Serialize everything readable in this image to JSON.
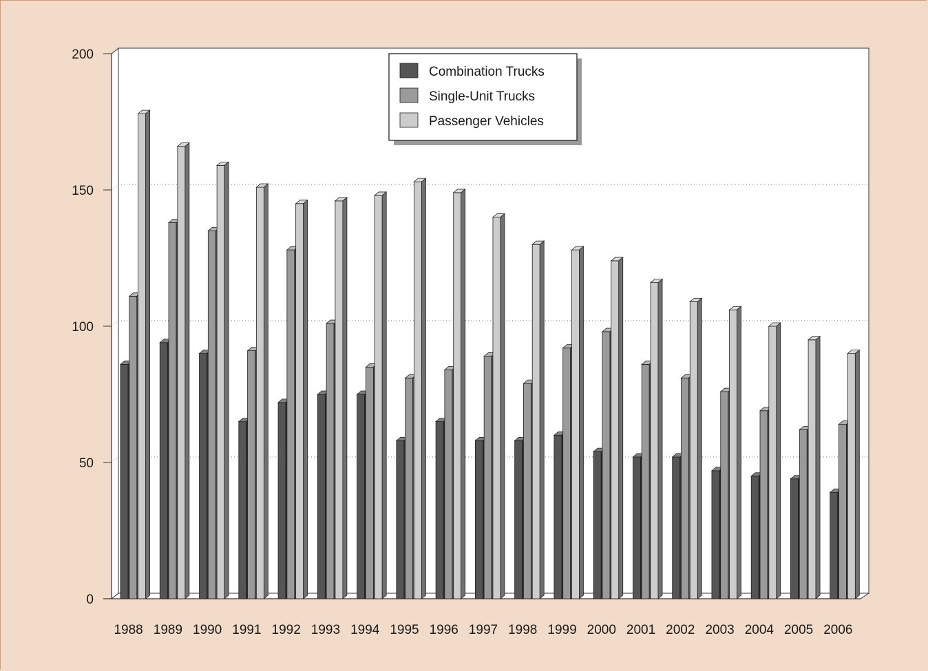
{
  "chart_data": {
    "type": "bar",
    "title": "",
    "xlabel": "",
    "ylabel": "",
    "ylim": [
      0,
      200
    ],
    "yticks": [
      0,
      50,
      100,
      150,
      200
    ],
    "grid": "horizontal dotted",
    "legend_position": "top-center",
    "categories": [
      "1988",
      "1989",
      "1990",
      "1991",
      "1992",
      "1993",
      "1994",
      "1995",
      "1996",
      "1997",
      "1998",
      "1999",
      "2000",
      "2001",
      "2002",
      "2003",
      "2004",
      "2005",
      "2006"
    ],
    "series": [
      {
        "name": "Combination Trucks",
        "color": "#555555",
        "values": [
          86,
          94,
          90,
          65,
          72,
          75,
          75,
          58,
          65,
          58,
          58,
          60,
          54,
          52,
          52,
          47,
          45,
          44,
          39
        ]
      },
      {
        "name": "Single-Unit Trucks",
        "color": "#9a9a9a",
        "values": [
          111,
          138,
          135,
          91,
          128,
          101,
          85,
          81,
          84,
          89,
          79,
          92,
          98,
          86,
          81,
          76,
          69,
          62,
          64
        ]
      },
      {
        "name": "Passenger Vehicles",
        "color": "#cccccc",
        "values": [
          178,
          166,
          159,
          151,
          145,
          146,
          148,
          153,
          149,
          140,
          130,
          128,
          124,
          116,
          109,
          106,
          100,
          95,
          90
        ]
      }
    ]
  }
}
